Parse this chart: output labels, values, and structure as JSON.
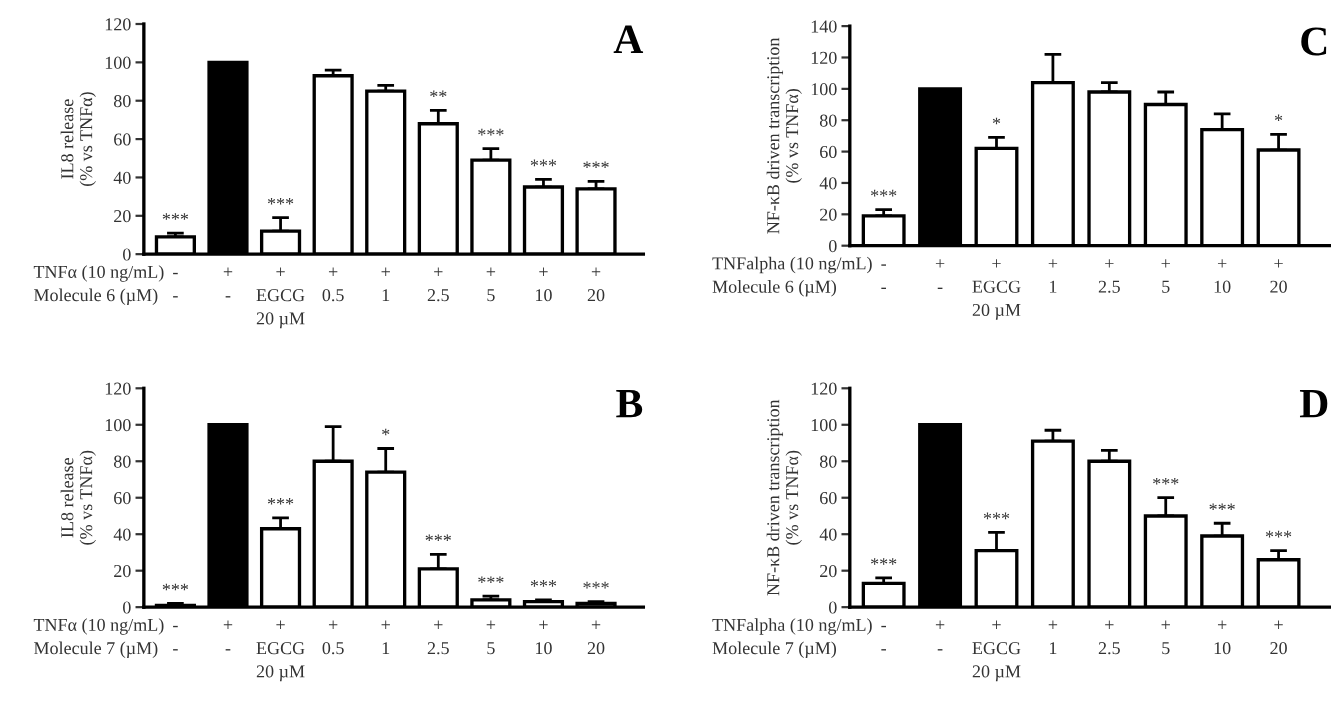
{
  "chart_data": [
    {
      "type": "bar",
      "title": "A",
      "ylabel": "IL8 release\n(% vs TNFα)",
      "xlabel": "TNFα (10 ng/mL)\nMolecule 6 (µM)",
      "categories": [
        "-\n-",
        "+\n-",
        "+\nEGCG\n20 µM",
        "+\n0.5",
        "+\n1",
        "+\n2.5",
        "+\n5",
        "+\n10",
        "+\n20"
      ],
      "values": [
        9,
        100,
        12,
        93,
        85,
        68,
        49,
        35,
        34
      ],
      "errors": [
        [
          9,
          11
        ],
        null,
        [
          12,
          19
        ],
        [
          93,
          96
        ],
        [
          85,
          88
        ],
        [
          68,
          75
        ],
        [
          49,
          55
        ],
        [
          35,
          39
        ],
        [
          34,
          38
        ]
      ],
      "value_labels": [
        "***",
        null,
        "***",
        null,
        null,
        "**",
        "***",
        "***",
        "***"
      ],
      "colors": [
        "#ffffff",
        "#000000",
        "#ffffff",
        "#ffffff",
        "#ffffff",
        "#ffffff",
        "#ffffff",
        "#ffffff",
        "#ffffff"
      ],
      "ylim": [
        0,
        120
      ],
      "yticks": [
        0,
        20,
        40,
        60,
        80,
        100,
        120
      ],
      "grid": false,
      "legend": false
    },
    {
      "type": "bar",
      "title": "C",
      "ylabel": "NF-κB driven transcription\n(% vs TNFα)",
      "xlabel": "TNFalpha (10 ng/mL)\nMolecule 6 (µM)",
      "categories": [
        "-\n-",
        "+\n-",
        "+\nEGCG\n20 µM",
        "+\n1",
        "+\n2.5",
        "+\n5",
        "+\n10",
        "+\n20"
      ],
      "values": [
        19,
        100,
        62,
        104,
        98,
        90,
        74,
        61
      ],
      "errors": [
        [
          19,
          23
        ],
        null,
        [
          62,
          69
        ],
        [
          104,
          122
        ],
        [
          98,
          104
        ],
        [
          90,
          98
        ],
        [
          74,
          84
        ],
        [
          61,
          71
        ]
      ],
      "value_labels": [
        "***",
        null,
        "*",
        null,
        null,
        null,
        null,
        "*"
      ],
      "colors": [
        "#ffffff",
        "#000000",
        "#ffffff",
        "#ffffff",
        "#ffffff",
        "#ffffff",
        "#ffffff",
        "#ffffff"
      ],
      "ylim": [
        0,
        140
      ],
      "yticks": [
        0,
        20,
        40,
        60,
        80,
        100,
        120,
        140
      ],
      "grid": false,
      "legend": false
    },
    {
      "type": "bar",
      "title": "B",
      "ylabel": "IL8 release\n(% vs TNFα)",
      "xlabel": "TNFα (10 ng/mL)\nMolecule 7 (µM)",
      "categories": [
        "-\n-",
        "+\n-",
        "+\nEGCG\n20 µM",
        "+\n0.5",
        "+\n1",
        "+\n2.5",
        "+\n5",
        "+\n10",
        "+\n20"
      ],
      "values": [
        1,
        100,
        43,
        80,
        74,
        21,
        4,
        3,
        2
      ],
      "errors": [
        [
          1,
          2
        ],
        null,
        [
          43,
          49
        ],
        [
          80,
          99
        ],
        [
          74,
          87
        ],
        [
          21,
          29
        ],
        [
          4,
          6
        ],
        [
          3,
          4
        ],
        [
          2,
          3
        ]
      ],
      "value_labels": [
        "***",
        null,
        "***",
        null,
        "*",
        "***",
        "***",
        "***",
        "***"
      ],
      "colors": [
        "#ffffff",
        "#000000",
        "#ffffff",
        "#ffffff",
        "#ffffff",
        "#ffffff",
        "#ffffff",
        "#ffffff",
        "#ffffff"
      ],
      "ylim": [
        0,
        120
      ],
      "yticks": [
        0,
        20,
        40,
        60,
        80,
        100,
        120
      ],
      "grid": false,
      "legend": false
    },
    {
      "type": "bar",
      "title": "D",
      "ylabel": "NF-κB driven transcription\n(% vs TNFα)",
      "xlabel": "TNFalpha (10 ng/mL)\nMolecule 7 (µM)",
      "categories": [
        "-\n-",
        "+\n-",
        "+\nEGCG\n20 µM",
        "+\n1",
        "+\n2.5",
        "+\n5",
        "+\n10",
        "+\n20"
      ],
      "values": [
        13,
        100,
        31,
        91,
        80,
        50,
        39,
        26
      ],
      "errors": [
        [
          13,
          16
        ],
        null,
        [
          31,
          41
        ],
        [
          91,
          97
        ],
        [
          80,
          86
        ],
        [
          50,
          60
        ],
        [
          39,
          46
        ],
        [
          26,
          31
        ]
      ],
      "value_labels": [
        "***",
        null,
        "***",
        null,
        null,
        "***",
        "***",
        "***"
      ],
      "colors": [
        "#ffffff",
        "#000000",
        "#ffffff",
        "#ffffff",
        "#ffffff",
        "#ffffff",
        "#ffffff",
        "#ffffff"
      ],
      "ylim": [
        0,
        120
      ],
      "yticks": [
        0,
        20,
        40,
        60,
        80,
        100,
        120
      ],
      "grid": false,
      "legend": false
    }
  ]
}
